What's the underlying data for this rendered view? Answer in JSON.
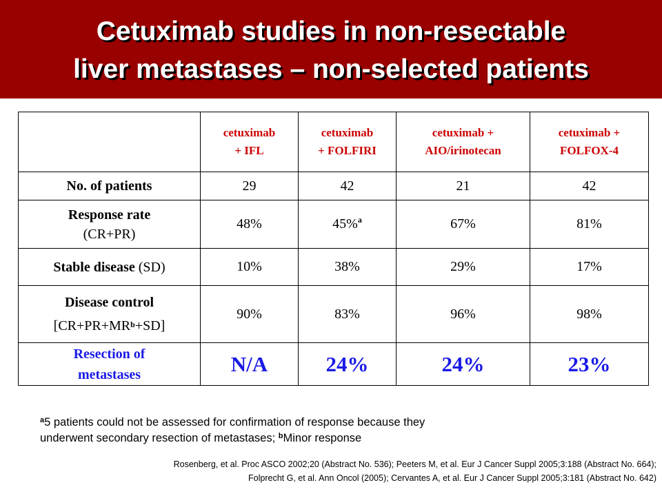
{
  "slide": {
    "title_line1": "Cetuximab studies in non-resectable",
    "title_line2": "liver metastases – non-selected patients",
    "banner_color": "#990000",
    "header_text_color": "#cc0000",
    "highlight_color": "#1a1ae6"
  },
  "table": {
    "columns": [
      {
        "line1": "cetuximab",
        "line2": "+ IFL"
      },
      {
        "line1": "cetuximab",
        "line2": "+ FOLFIRI"
      },
      {
        "line1": "cetuximab +",
        "line2": "AIO/irinotecan"
      },
      {
        "line1": "cetuximab +",
        "line2": "FOLFOX-4"
      }
    ],
    "rows": [
      {
        "label_bold": "No. of patients",
        "label_rest": "",
        "values": [
          "29",
          "42",
          "21",
          "42"
        ]
      },
      {
        "label_bold": "Response rate",
        "label_rest": "(CR+PR)",
        "values": [
          "48%",
          "45%",
          "67%",
          "81%"
        ],
        "value_sup": {
          "index": 1,
          "mark": "a"
        }
      },
      {
        "label_bold": "Stable disease",
        "label_rest": "(SD)",
        "values": [
          "10%",
          "38%",
          "29%",
          "17%"
        ]
      },
      {
        "label_bold": "Disease control",
        "label_rest_pre": "[CR+PR+MR",
        "label_sup": "b",
        "label_rest_post": "+SD]",
        "values": [
          "90%",
          "83%",
          "96%",
          "98%"
        ]
      },
      {
        "label_line1": "Resection of",
        "label_line2": "metastases",
        "values": [
          "N/A",
          "24%",
          "24%",
          "23%"
        ]
      }
    ]
  },
  "footnote": {
    "mark_a": "a",
    "text_a_line1": "5 patients could not be assessed for confirmation of response because they",
    "text_a_line2": "underwent secondary resection of metastases; ",
    "mark_b": "b",
    "text_b": "Minor response"
  },
  "references": {
    "line1": "Rosenberg, et al. Proc ASCO 2002;20 (Abstract No. 536); Peeters M, et al. Eur J Cancer Suppl 2005;3:188 (Abstract No. 664);",
    "line2": "Folprecht G, et al. Ann Oncol (2005); Cervantes A, et al. Eur J Cancer Suppl 2005;3:181 (Abstract No. 642)"
  }
}
